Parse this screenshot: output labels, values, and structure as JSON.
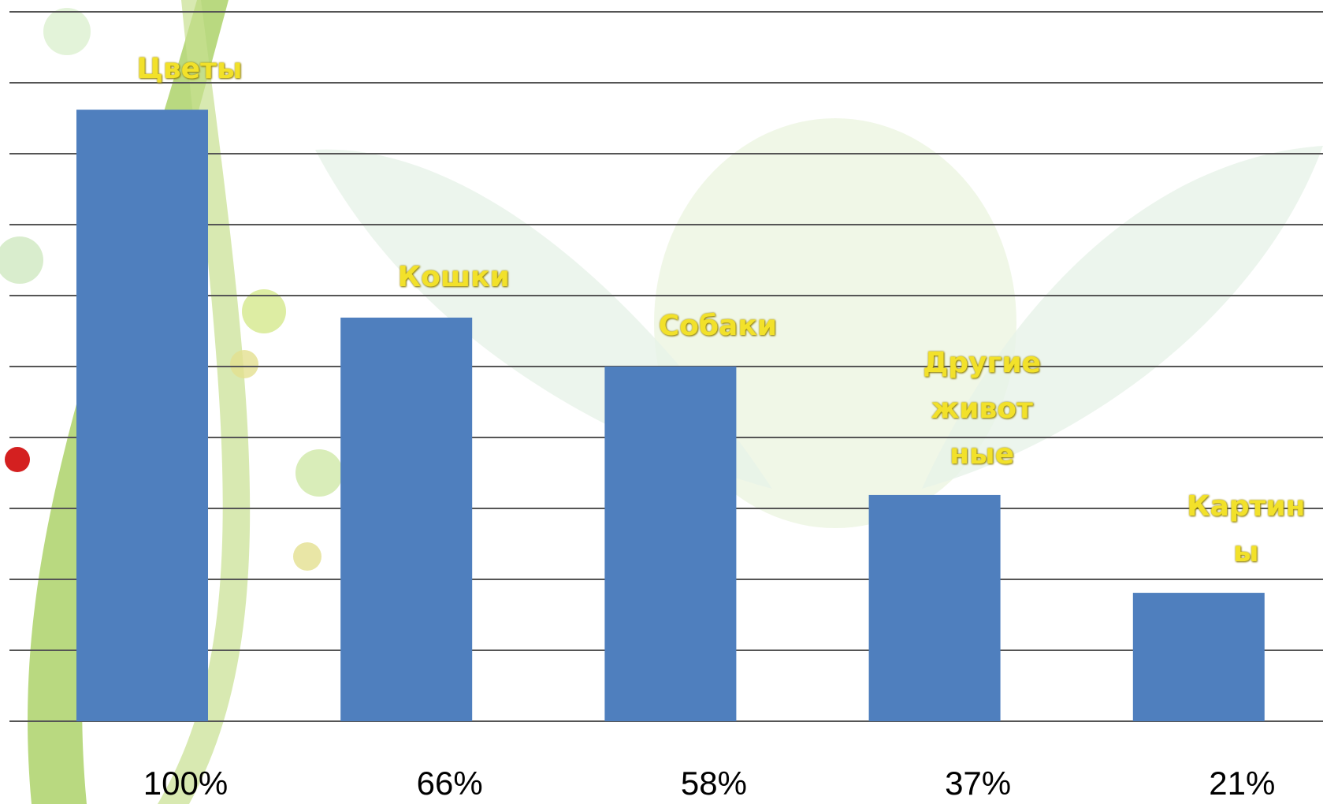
{
  "chart_data": {
    "type": "bar",
    "categories": [
      "Цветы",
      "Кошки",
      "Собаки",
      "Другие\nживот\nные",
      "Картин\nы"
    ],
    "values": [
      100,
      66,
      58,
      37,
      21
    ],
    "value_labels": [
      "100%",
      "66%",
      "58%",
      "37%",
      "21%"
    ],
    "color": "#4f7fbe",
    "ylim": [
      0,
      116
    ],
    "grid": true
  }
}
